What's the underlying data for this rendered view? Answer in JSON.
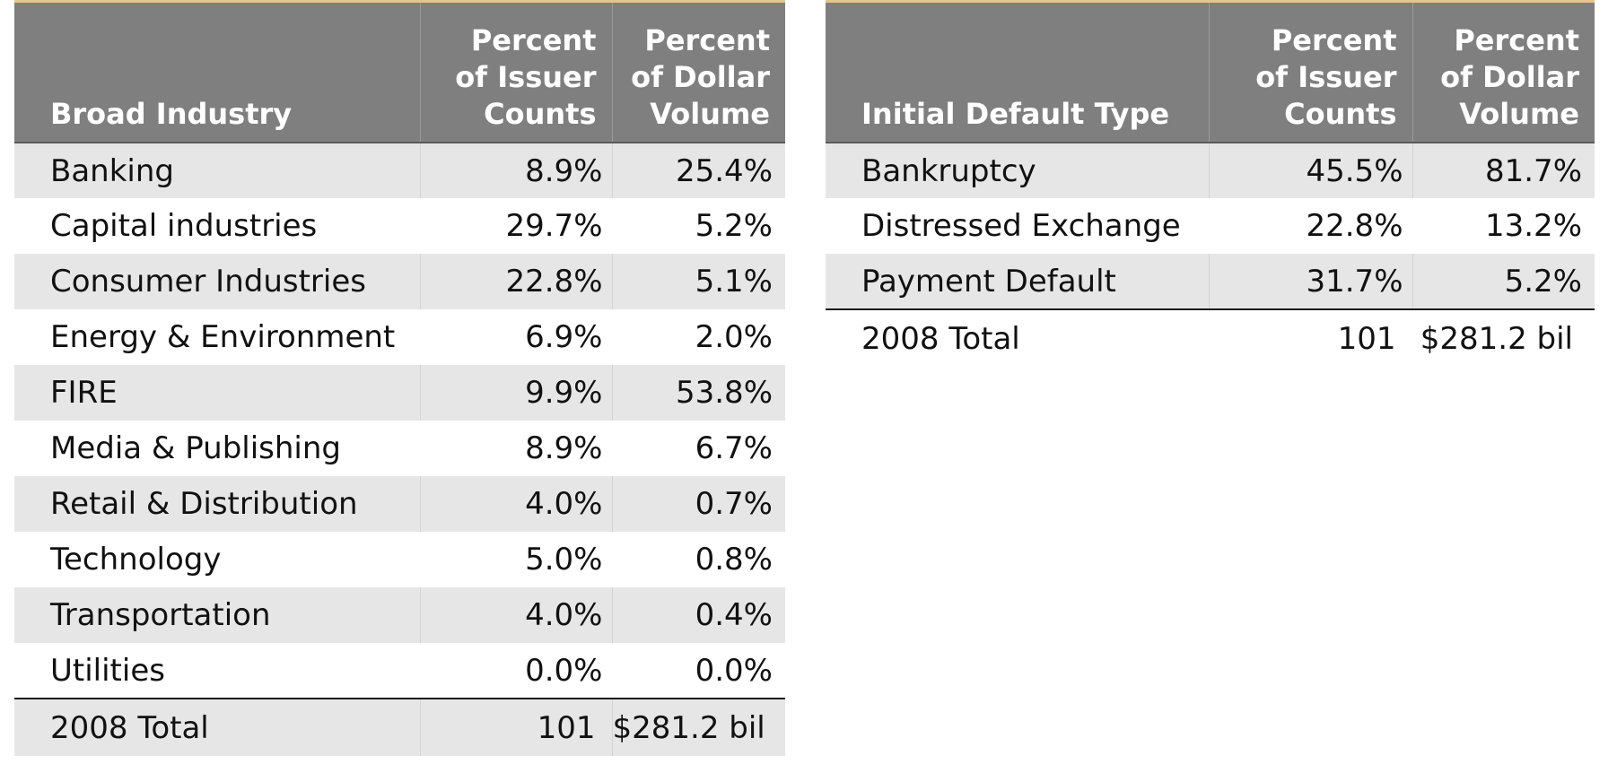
{
  "industry_table": {
    "headers": {
      "label": "Broad Industry",
      "issuer_counts": [
        "Percent",
        "of Issuer",
        "Counts"
      ],
      "dollar_volume": [
        "Percent",
        "of Dollar",
        "Volume"
      ]
    },
    "rows": [
      {
        "label": "Banking",
        "issuer": "8.9%",
        "dollar": "25.4%"
      },
      {
        "label": "Capital industries",
        "issuer": "29.7%",
        "dollar": "5.2%"
      },
      {
        "label": "Consumer Industries",
        "issuer": "22.8%",
        "dollar": "5.1%"
      },
      {
        "label": "Energy & Environment",
        "issuer": "6.9%",
        "dollar": "2.0%"
      },
      {
        "label": "FIRE",
        "issuer": "9.9%",
        "dollar": "53.8%"
      },
      {
        "label": "Media & Publishing",
        "issuer": "8.9%",
        "dollar": "6.7%"
      },
      {
        "label": "Retail & Distribution",
        "issuer": "4.0%",
        "dollar": "0.7%"
      },
      {
        "label": "Technology",
        "issuer": "5.0%",
        "dollar": "0.8%"
      },
      {
        "label": "Transportation",
        "issuer": "4.0%",
        "dollar": "0.4%"
      },
      {
        "label": "Utilities",
        "issuer": "0.0%",
        "dollar": "0.0%"
      }
    ],
    "total": {
      "label": "2008 Total",
      "issuer": "101",
      "dollar": "$281.2 bil"
    }
  },
  "default_table": {
    "headers": {
      "label": "Initial Default Type",
      "issuer_counts": [
        "Percent",
        "of Issuer",
        "Counts"
      ],
      "dollar_volume": [
        "Percent",
        "of Dollar",
        "Volume"
      ]
    },
    "rows": [
      {
        "label": "Bankruptcy",
        "issuer": "45.5%",
        "dollar": "81.7%"
      },
      {
        "label": "Distressed Exchange",
        "issuer": "22.8%",
        "dollar": "13.2%"
      },
      {
        "label": "Payment Default",
        "issuer": "31.7%",
        "dollar": "5.2%"
      }
    ],
    "total": {
      "label": "2008 Total",
      "issuer": "101",
      "dollar": "$281.2 bil"
    }
  },
  "colors": {
    "header_background": "#7f7f7f",
    "shaded_row": "#e6e6e6",
    "accent_line": "#e7c58a"
  }
}
